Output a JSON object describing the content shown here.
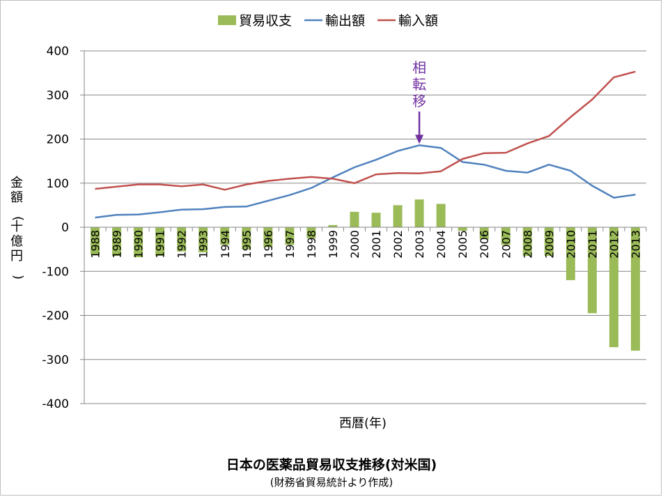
{
  "chart_data": {
    "type": "bar+line",
    "title": "日本の医薬品貿易収支推移(対米国)",
    "subtitle": "(財務省貿易統計より作成)",
    "xlabel": "西暦(年)",
    "ylabel": "金額(十億円)",
    "ylim": [
      -400,
      400
    ],
    "yticks": [
      400,
      300,
      200,
      100,
      0,
      -100,
      -200,
      -300,
      -400
    ],
    "grid": true,
    "legend_position": "top",
    "categories": [
      "1988",
      "1989",
      "1990",
      "1991",
      "1992",
      "1993",
      "1994",
      "1995",
      "1996",
      "1997",
      "1998",
      "1999",
      "2000",
      "2001",
      "2002",
      "2003",
      "2004",
      "2005",
      "2006",
      "2007",
      "2008",
      "2009",
      "2010",
      "2011",
      "2012",
      "2013"
    ],
    "series": [
      {
        "name": "貿易収支",
        "kind": "bar",
        "color": "#9bbb59",
        "values": [
          -62,
          -65,
          -68,
          -65,
          -55,
          -57,
          -40,
          -50,
          -45,
          -40,
          -25,
          5,
          35,
          33,
          50,
          63,
          53,
          -8,
          -27,
          -40,
          -65,
          -65,
          -120,
          -195,
          -272,
          -280
        ]
      },
      {
        "name": "輸出額",
        "kind": "line",
        "color": "#4f81bd",
        "values": [
          22,
          28,
          29,
          34,
          40,
          41,
          46,
          47,
          60,
          73,
          89,
          113,
          136,
          153,
          173,
          186,
          180,
          148,
          142,
          128,
          124,
          142,
          128,
          94,
          67,
          74
        ]
      },
      {
        "name": "輸入額",
        "kind": "line",
        "color": "#c0504d",
        "values": [
          87,
          92,
          97,
          97,
          93,
          97,
          85,
          97,
          105,
          110,
          114,
          110,
          100,
          120,
          123,
          122,
          127,
          155,
          168,
          169,
          190,
          207,
          250,
          290,
          340,
          353
        ]
      }
    ],
    "annotation": {
      "text": "相転移",
      "category": "2003",
      "color": "#7030a0"
    }
  }
}
